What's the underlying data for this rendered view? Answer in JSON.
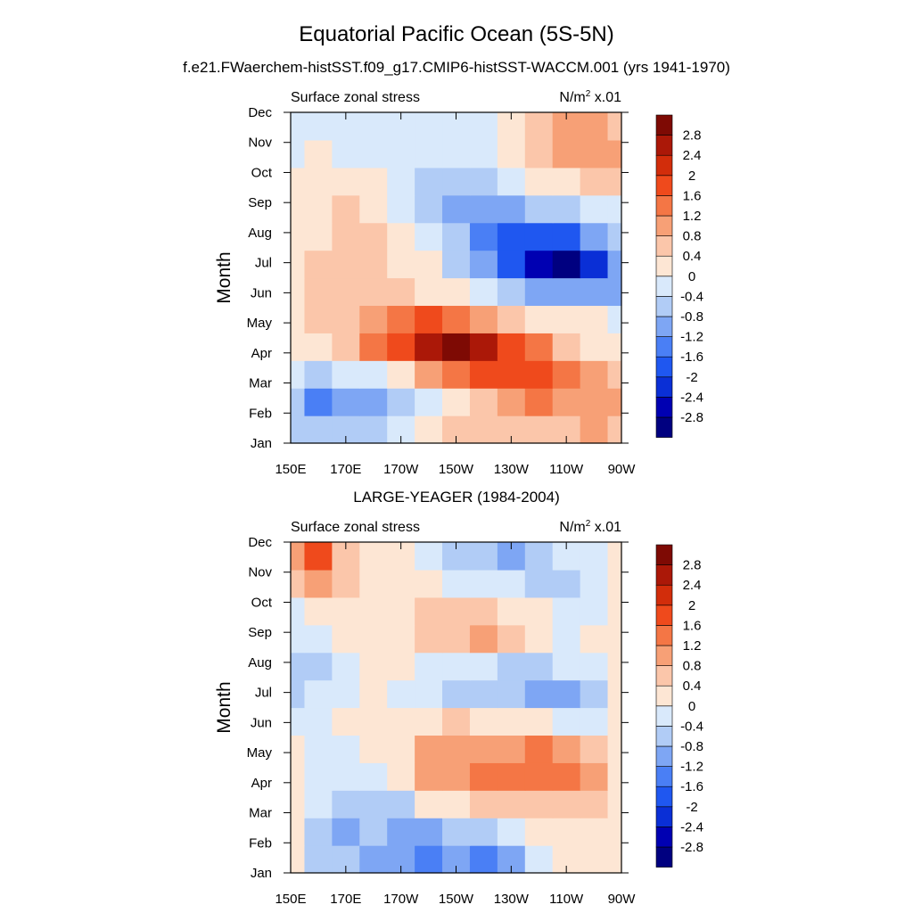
{
  "figure": {
    "title": "Equatorial Pacific Ocean (5S-5N)"
  },
  "colorscale": {
    "levels": [
      "2.8",
      "2.4",
      "2",
      "1.6",
      "1.2",
      "0.8",
      "0.4",
      "0",
      "-0.4",
      "-0.8",
      "-1.2",
      "-1.6",
      "-2",
      "-2.4",
      "-2.8"
    ],
    "colors": [
      "#000080",
      "#0000b2",
      "#0a2fd6",
      "#1f57f0",
      "#4a7ff5",
      "#7ea6f4",
      "#b1ccf6",
      "#d9e9fb",
      "#fde6d4",
      "#fbc6aa",
      "#f7a076",
      "#f47645",
      "#ef4a1c",
      "#d22d0b",
      "#ab1808",
      "#7e0a04"
    ]
  },
  "chart_data": [
    {
      "type": "heatmap",
      "title": "f.e21.FWaerchem-histSST.f09_g17.CMIP6-histSST-WACCM.001 (yrs 1941-1970)",
      "left_label": "Surface zonal stress",
      "units_main": "N/m",
      "units_sup": "2",
      "units_tail": " x.01",
      "ylabel": "Month",
      "x_ticks": [
        "150E",
        "170E",
        "170W",
        "150W",
        "130W",
        "110W",
        "90W"
      ],
      "y_ticks": [
        "Jan",
        "Feb",
        "Mar",
        "Apr",
        "May",
        "Jun",
        "Jul",
        "Aug",
        "Sep",
        "Oct",
        "Nov",
        "Dec"
      ],
      "x_range": [
        150,
        270
      ],
      "grid_lon": [
        150,
        160,
        170,
        180,
        190,
        200,
        210,
        220,
        230,
        240,
        250,
        260,
        270
      ],
      "values": [
        [
          -0.6,
          -0.7,
          -0.8,
          -0.6,
          -0.2,
          0.2,
          0.5,
          0.6,
          0.5,
          0.4,
          0.6,
          0.8,
          0.7
        ],
        [
          -0.8,
          -1.4,
          -1.2,
          -1.0,
          -0.6,
          -0.3,
          0.3,
          0.7,
          1.0,
          1.2,
          1.1,
          1.0,
          0.8
        ],
        [
          -0.4,
          -0.5,
          -0.4,
          -0.2,
          0.3,
          0.9,
          1.3,
          1.6,
          1.8,
          1.6,
          1.3,
          0.9,
          0.5
        ],
        [
          0.0,
          0.2,
          0.5,
          1.2,
          1.8,
          2.4,
          2.9,
          2.4,
          1.8,
          1.2,
          0.7,
          0.3,
          0.1
        ],
        [
          0.3,
          0.5,
          0.7,
          0.9,
          1.3,
          1.6,
          1.5,
          1.1,
          0.6,
          0.3,
          0.2,
          0.0,
          -0.1
        ],
        [
          0.2,
          0.5,
          0.6,
          0.6,
          0.5,
          0.3,
          0.0,
          -0.3,
          -0.7,
          -1.0,
          -1.2,
          -1.2,
          -0.9
        ],
        [
          0.2,
          0.5,
          0.5,
          0.5,
          0.3,
          0.0,
          -0.5,
          -1.0,
          -1.8,
          -2.5,
          -2.9,
          -2.2,
          -1.0
        ],
        [
          0.2,
          0.3,
          0.5,
          0.4,
          0.2,
          -0.3,
          -0.8,
          -1.4,
          -1.8,
          -2.0,
          -1.8,
          -1.2,
          -0.6
        ],
        [
          0.3,
          0.3,
          0.4,
          0.2,
          -0.1,
          -0.5,
          -0.9,
          -1.1,
          -1.1,
          -0.8,
          -0.5,
          -0.3,
          -0.1
        ],
        [
          0.2,
          0.3,
          0.2,
          0.1,
          -0.2,
          -0.5,
          -0.6,
          -0.6,
          -0.4,
          0.0,
          0.3,
          0.4,
          0.4
        ],
        [
          -0.1,
          0.0,
          -0.1,
          -0.2,
          -0.4,
          -0.3,
          -0.4,
          -0.3,
          0.1,
          0.5,
          0.8,
          0.9,
          0.8
        ],
        [
          -0.4,
          -0.3,
          -0.3,
          -0.3,
          -0.4,
          -0.3,
          -0.4,
          -0.2,
          0.2,
          0.5,
          0.8,
          0.8,
          0.6
        ]
      ]
    },
    {
      "type": "heatmap",
      "title": "LARGE-YEAGER (1984-2004)",
      "left_label": "Surface zonal stress",
      "units_main": "N/m",
      "units_sup": "2",
      "units_tail": " x.01",
      "ylabel": "Month",
      "x_ticks": [
        "150E",
        "170E",
        "170W",
        "150W",
        "130W",
        "110W",
        "90W"
      ],
      "y_ticks": [
        "Jan",
        "Feb",
        "Mar",
        "Apr",
        "May",
        "Jun",
        "Jul",
        "Aug",
        "Sep",
        "Oct",
        "Nov",
        "Dec"
      ],
      "x_range": [
        150,
        270
      ],
      "grid_lon": [
        150,
        160,
        170,
        180,
        190,
        200,
        210,
        220,
        230,
        240,
        250,
        260,
        270
      ],
      "values": [
        [
          0.1,
          -0.6,
          -0.8,
          -0.9,
          -1.0,
          -1.4,
          -1.0,
          -1.5,
          -1.0,
          -0.4,
          0.0,
          0.2,
          0.1
        ],
        [
          0.1,
          -0.8,
          -1.0,
          -0.7,
          -1.1,
          -1.0,
          -0.8,
          -0.7,
          -0.4,
          0.0,
          0.2,
          0.3,
          0.2
        ],
        [
          0.3,
          -0.4,
          -0.7,
          -0.8,
          -0.5,
          0.0,
          0.3,
          0.5,
          0.6,
          0.5,
          0.5,
          0.4,
          0.1
        ],
        [
          0.2,
          -0.1,
          -0.3,
          -0.4,
          0.1,
          0.8,
          1.0,
          1.2,
          1.4,
          1.5,
          1.2,
          0.8,
          0.2
        ],
        [
          0.1,
          -0.2,
          -0.1,
          0.0,
          0.3,
          0.8,
          1.0,
          1.0,
          1.1,
          1.3,
          1.0,
          0.5,
          0.1
        ],
        [
          -0.2,
          -0.1,
          0.1,
          0.1,
          0.1,
          0.3,
          0.4,
          0.2,
          0.1,
          0.0,
          -0.2,
          -0.2,
          0.1
        ],
        [
          -0.5,
          -0.3,
          -0.1,
          0.0,
          -0.2,
          -0.4,
          -0.6,
          -0.7,
          -0.6,
          -1.0,
          -1.1,
          -0.5,
          0.1
        ],
        [
          -0.8,
          -0.5,
          -0.2,
          0.1,
          0.0,
          -0.2,
          -0.4,
          -0.3,
          -0.5,
          -0.6,
          -0.4,
          -0.1,
          0.1
        ],
        [
          -0.4,
          -0.3,
          0.0,
          0.2,
          0.2,
          0.5,
          0.6,
          0.9,
          0.4,
          0.2,
          -0.1,
          0.0,
          0.2
        ],
        [
          -0.1,
          0.0,
          0.1,
          0.3,
          0.2,
          0.5,
          0.6,
          0.7,
          0.3,
          0.0,
          -0.3,
          -0.2,
          0.2
        ],
        [
          0.7,
          1.0,
          0.4,
          0.2,
          0.1,
          0.0,
          -0.1,
          -0.2,
          -0.3,
          -0.5,
          -0.5,
          -0.2,
          0.2
        ],
        [
          1.0,
          1.8,
          0.7,
          0.3,
          0.0,
          -0.4,
          -0.6,
          -0.8,
          -1.2,
          -0.8,
          -0.4,
          -0.1,
          0.3
        ]
      ]
    }
  ]
}
